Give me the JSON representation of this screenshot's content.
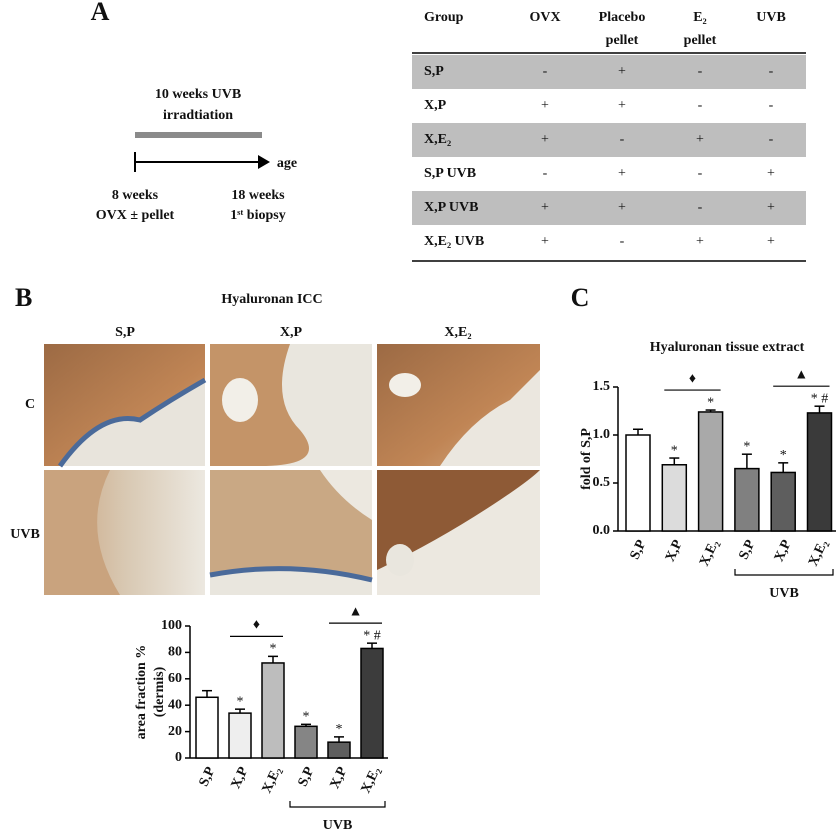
{
  "panel_a": {
    "label": "A",
    "timeline": {
      "period": [
        "10 weeks UVB",
        "irradtiation"
      ],
      "axis_label": "age",
      "start": [
        "8 weeks",
        "OVX ± pellet"
      ],
      "end": [
        "18 weeks",
        "1ˢᵗ biopsy"
      ]
    }
  },
  "table": {
    "header": [
      [
        "Group"
      ],
      [
        "OVX"
      ],
      [
        "Placebo",
        "pellet"
      ],
      [
        "E₂",
        "pellet"
      ],
      [
        "UVB"
      ]
    ],
    "rows": [
      [
        "S,P",
        "-",
        "+",
        "-",
        "-"
      ],
      [
        "X,P",
        "+",
        "+",
        "-",
        "-"
      ],
      [
        "X,E₂",
        "+",
        "-",
        "+",
        "-"
      ],
      [
        "S,P UVB",
        "-",
        "+",
        "-",
        "+"
      ],
      [
        "X,P UVB",
        "+",
        "+",
        "-",
        "+"
      ],
      [
        "X,E₂ UVB",
        "+",
        "-",
        "+",
        "+"
      ]
    ]
  },
  "panel_b": {
    "label": "B",
    "title": "Hyaluronan ICC",
    "columns": [
      "S,P",
      "X,P",
      "X,E₂"
    ],
    "rows": [
      "C",
      "UVB"
    ]
  },
  "chart_data": [
    {
      "type": "bar",
      "ylabel": [
        "area fraction %",
        "(dermis)"
      ],
      "categories": [
        "S,P",
        "X,P",
        "X,E₂",
        "S,P",
        "X,P",
        "X,E₂"
      ],
      "values": [
        46,
        34,
        72,
        24,
        12,
        83
      ],
      "errors": [
        5,
        3,
        5,
        1.5,
        4,
        4
      ],
      "colors": [
        "#ffffff",
        "#eeeeee",
        "#bdbdbd",
        "#858585",
        "#5e5e5e",
        "#3c3c3c"
      ],
      "ylim": [
        0,
        100
      ],
      "yticks": [
        0,
        20,
        40,
        60,
        80,
        100
      ],
      "significance": [
        null,
        "*",
        "*",
        "*",
        "*",
        "* #"
      ],
      "markers": [
        "♦",
        "▲"
      ],
      "group_label": "UVB"
    },
    {
      "type": "bar",
      "panel": "C",
      "title": "Hyaluronan tissue extract",
      "ylabel": [
        "fold of S,P"
      ],
      "categories": [
        "S,P",
        "X,P",
        "X,E₂",
        "S,P",
        "X,P",
        "X,E₂"
      ],
      "values": [
        1.0,
        0.69,
        1.24,
        0.65,
        0.61,
        1.23
      ],
      "errors": [
        0.06,
        0.07,
        0.02,
        0.15,
        0.1,
        0.07
      ],
      "colors": [
        "#ffffff",
        "#dcdcdc",
        "#a9a9a9",
        "#808080",
        "#5e5e5e",
        "#3a3a3a"
      ],
      "ylim": [
        0,
        1.5
      ],
      "yticks": [
        {
          "value": 0,
          "label": "0.0"
        },
        0.5,
        {
          "value": 1,
          "label": "1.0"
        },
        1.5
      ],
      "significance": [
        null,
        "*",
        "*",
        "*",
        "*",
        "* #"
      ],
      "markers": [
        "♦",
        "▲"
      ],
      "group_label": "UVB"
    }
  ]
}
